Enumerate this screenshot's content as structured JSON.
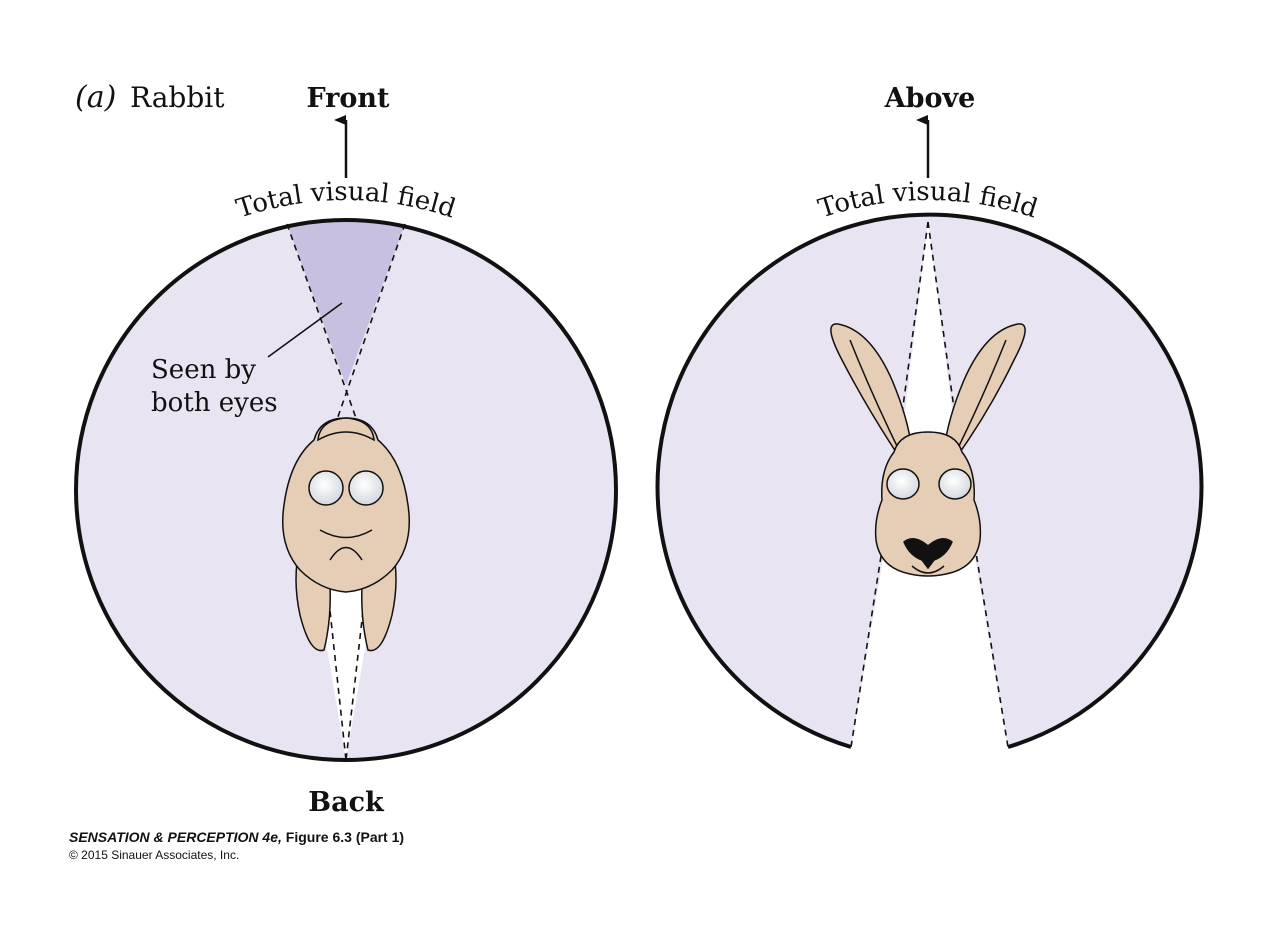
{
  "panel": {
    "letter": "(a)",
    "animal": "Rabbit"
  },
  "left_view": {
    "top_label": "Front",
    "bottom_label": "Back",
    "field_label": "Total visual field",
    "binocular_label_line1": "Seen by",
    "binocular_label_line2": "both eyes"
  },
  "right_view": {
    "top_label": "Above",
    "field_label": "Total visual field"
  },
  "credit": {
    "book": "SENSATION & PERCEPTION 4e,",
    "figure": "Figure 6.3 (Part 1)",
    "copyright": "© 2015 Sinauer Associates, Inc."
  },
  "colors": {
    "visual_field": "#e9e4f2",
    "binocular_field": "#c9bfe0",
    "outline": "#111111",
    "rabbit_fur": "#e6cdb5",
    "eye": "#f2f4f6"
  }
}
